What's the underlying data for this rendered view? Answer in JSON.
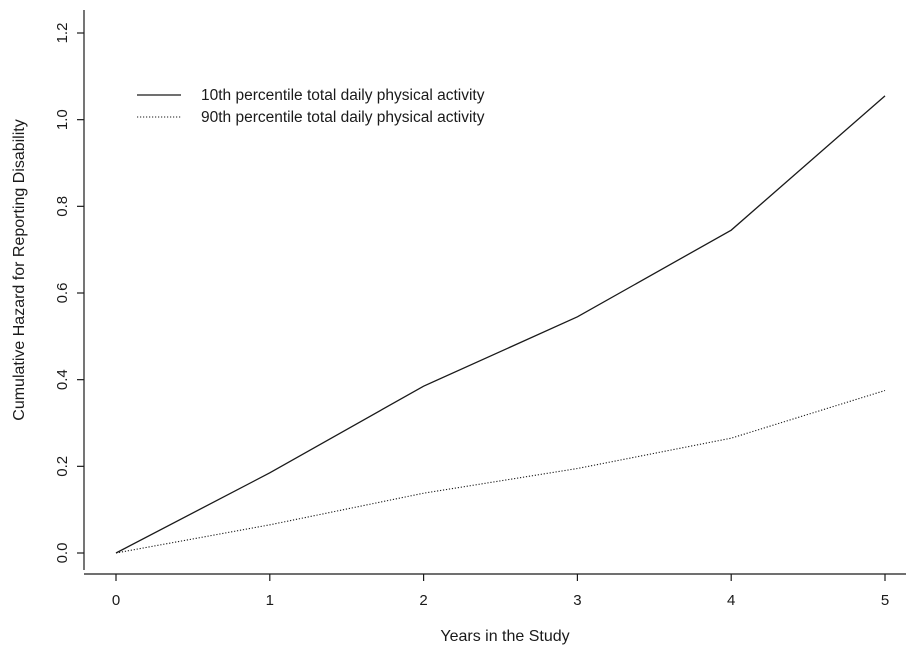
{
  "chart_data": {
    "type": "line",
    "title": "",
    "xlabel": "Years in the Study",
    "ylabel": "Cumulative Hazard for Reporting Disability",
    "x": [
      0,
      1,
      2,
      3,
      4,
      5
    ],
    "x_ticks": [
      "0",
      "1",
      "2",
      "3",
      "4",
      "5"
    ],
    "y_ticks": [
      "0.0",
      "0.2",
      "0.4",
      "0.6",
      "0.8",
      "1.0",
      "1.2"
    ],
    "xlim": [
      0,
      5
    ],
    "ylim": [
      0,
      1.2
    ],
    "grid": false,
    "legend_position": "top-left",
    "series": [
      {
        "name": "10th percentile total daily physical activity",
        "line_style": "solid",
        "color": "#1a1a1a",
        "values": [
          0.0,
          0.185,
          0.385,
          0.545,
          0.745,
          1.055
        ]
      },
      {
        "name": "90th percentile total daily physical activity",
        "line_style": "dotted",
        "color": "#1a1a1a",
        "values": [
          0.0,
          0.065,
          0.138,
          0.195,
          0.265,
          0.375
        ]
      }
    ]
  }
}
